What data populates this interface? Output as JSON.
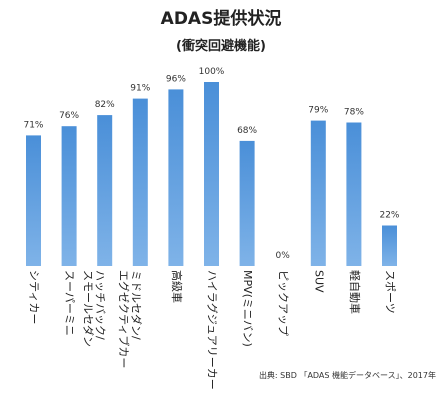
{
  "chart_data": {
    "type": "bar",
    "title": "ADAS提供状況",
    "subtitle": "(衝突回避機能)",
    "categories": [
      "シティカー",
      "スーパーミニ",
      "ハッチバック/スモールセダン",
      "ミドルセダン/エグゼクティブカー",
      "高級車",
      "ハイラグジュアリーカー",
      "MPV(ミニバン)",
      "ピックアップ",
      "SUV",
      "軽自動車",
      "スポーツ"
    ],
    "values": [
      71,
      76,
      82,
      91,
      96,
      100,
      68,
      0,
      79,
      78,
      22
    ],
    "value_labels": [
      "71%",
      "76%",
      "82%",
      "91%",
      "96%",
      "100%",
      "68%",
      "0%",
      "79%",
      "78%",
      "22%"
    ],
    "ylim": [
      0,
      100
    ],
    "grid": false,
    "source": "出典: SBD 「ADAS 機能データベース」、2017年",
    "colors": {
      "bar": "#5b9bd5",
      "bar_gradient_top": "#4a8fd8",
      "bar_gradient_bottom": "#7fb3e8"
    }
  }
}
